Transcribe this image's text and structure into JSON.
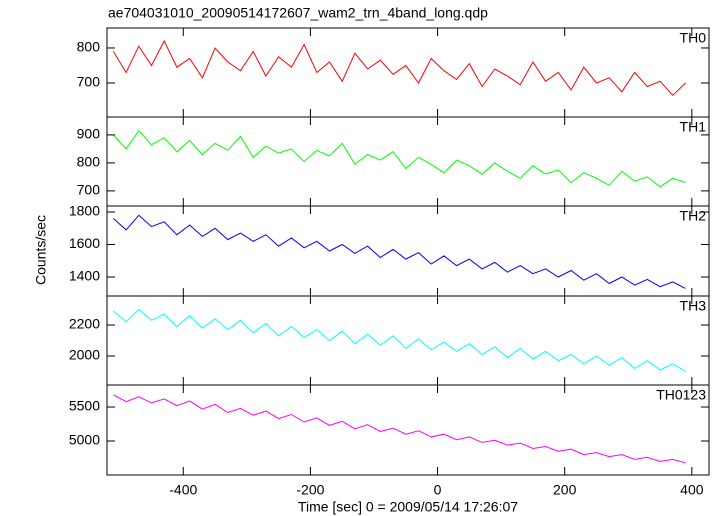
{
  "chart_data": [
    {
      "type": "line",
      "title": "ae704031010_20090514172607_wam2_trn_4band_long.qdp",
      "name": "TH0",
      "color": "#ff0000",
      "x": [
        -510,
        -490,
        -470,
        -450,
        -430,
        -410,
        -390,
        -370,
        -350,
        -330,
        -310,
        -290,
        -270,
        -250,
        -230,
        -210,
        -190,
        -170,
        -150,
        -130,
        -110,
        -90,
        -70,
        -50,
        -30,
        -10,
        10,
        30,
        50,
        70,
        90,
        110,
        130,
        150,
        170,
        190,
        210,
        230,
        250,
        270,
        290,
        310,
        330,
        350,
        370,
        390
      ],
      "values": [
        790,
        730,
        805,
        750,
        820,
        745,
        770,
        715,
        800,
        760,
        735,
        790,
        720,
        775,
        745,
        810,
        730,
        760,
        705,
        785,
        740,
        765,
        725,
        750,
        700,
        770,
        735,
        710,
        755,
        690,
        740,
        720,
        695,
        760,
        705,
        730,
        680,
        745,
        700,
        715,
        675,
        730,
        690,
        705,
        665,
        700
      ],
      "xlim": [
        -520,
        427
      ],
      "xticks": [
        -400,
        -200,
        0,
        200,
        400
      ],
      "ylim": [
        603,
        857
      ],
      "yticks": [
        700,
        800
      ]
    },
    {
      "type": "line",
      "name": "TH1",
      "color": "#00ff00",
      "x": [
        -510,
        -490,
        -470,
        -450,
        -430,
        -410,
        -390,
        -370,
        -350,
        -330,
        -310,
        -290,
        -270,
        -250,
        -230,
        -210,
        -190,
        -170,
        -150,
        -130,
        -110,
        -90,
        -70,
        -50,
        -30,
        -10,
        10,
        30,
        50,
        70,
        90,
        110,
        130,
        150,
        170,
        190,
        210,
        230,
        250,
        270,
        290,
        310,
        330,
        350,
        370,
        390
      ],
      "values": [
        900,
        850,
        915,
        865,
        890,
        840,
        880,
        830,
        870,
        845,
        895,
        820,
        860,
        835,
        850,
        805,
        845,
        825,
        870,
        795,
        830,
        810,
        840,
        780,
        820,
        795,
        765,
        810,
        790,
        760,
        800,
        770,
        745,
        790,
        760,
        775,
        730,
        765,
        745,
        720,
        770,
        735,
        750,
        715,
        745,
        730
      ],
      "xlim": [
        -520,
        427
      ],
      "xticks": [
        -400,
        -200,
        0,
        200,
        400
      ],
      "ylim": [
        646,
        964
      ],
      "yticks": [
        700,
        800,
        900
      ]
    },
    {
      "type": "line",
      "name": "TH2",
      "color": "#0000ff",
      "y_label": "Counts/sec",
      "x": [
        -510,
        -490,
        -470,
        -450,
        -430,
        -410,
        -390,
        -370,
        -350,
        -330,
        -310,
        -290,
        -270,
        -250,
        -230,
        -210,
        -190,
        -170,
        -150,
        -130,
        -110,
        -90,
        -70,
        -50,
        -30,
        -10,
        10,
        30,
        50,
        70,
        90,
        110,
        130,
        150,
        170,
        190,
        210,
        230,
        250,
        270,
        290,
        310,
        330,
        350,
        370,
        390
      ],
      "values": [
        1760,
        1690,
        1780,
        1710,
        1740,
        1660,
        1720,
        1650,
        1700,
        1630,
        1670,
        1620,
        1660,
        1590,
        1640,
        1580,
        1620,
        1560,
        1600,
        1545,
        1590,
        1520,
        1570,
        1510,
        1550,
        1480,
        1530,
        1470,
        1510,
        1450,
        1490,
        1430,
        1470,
        1420,
        1450,
        1400,
        1440,
        1380,
        1420,
        1360,
        1400,
        1350,
        1385,
        1340,
        1370,
        1330
      ],
      "xlim": [
        -520,
        427
      ],
      "xticks": [
        -400,
        -200,
        0,
        200,
        400
      ],
      "ylim": [
        1283,
        1837
      ],
      "yticks": [
        1400,
        1600,
        1800
      ]
    },
    {
      "type": "line",
      "name": "TH3",
      "color": "#00ffff",
      "x": [
        -510,
        -490,
        -470,
        -450,
        -430,
        -410,
        -390,
        -370,
        -350,
        -330,
        -310,
        -290,
        -270,
        -250,
        -230,
        -210,
        -190,
        -170,
        -150,
        -130,
        -110,
        -90,
        -70,
        -50,
        -30,
        -10,
        10,
        30,
        50,
        70,
        90,
        110,
        130,
        150,
        170,
        190,
        210,
        230,
        250,
        270,
        290,
        310,
        330,
        350,
        370,
        390
      ],
      "values": [
        2290,
        2220,
        2300,
        2230,
        2270,
        2190,
        2260,
        2180,
        2240,
        2170,
        2230,
        2150,
        2210,
        2130,
        2190,
        2120,
        2170,
        2100,
        2160,
        2080,
        2140,
        2070,
        2130,
        2050,
        2110,
        2040,
        2090,
        2030,
        2080,
        2010,
        2060,
        1990,
        2050,
        1980,
        2030,
        1970,
        2010,
        1950,
        2000,
        1940,
        1990,
        1920,
        1970,
        1910,
        1950,
        1900
      ],
      "xlim": [
        -520,
        427
      ],
      "xticks": [
        -400,
        -200,
        0,
        200,
        400
      ],
      "ylim": [
        1813,
        2387
      ],
      "yticks": [
        2000,
        2200
      ]
    },
    {
      "type": "line",
      "name": "TH0123",
      "color": "#ff00ff",
      "x_label": "Time [sec] 0 = 2009/05/14 17:26:07",
      "x": [
        -510,
        -490,
        -470,
        -450,
        -430,
        -410,
        -390,
        -370,
        -350,
        -330,
        -310,
        -290,
        -270,
        -250,
        -230,
        -210,
        -190,
        -170,
        -150,
        -130,
        -110,
        -90,
        -70,
        -50,
        -30,
        -10,
        10,
        30,
        50,
        70,
        90,
        110,
        130,
        150,
        170,
        190,
        210,
        230,
        250,
        270,
        290,
        310,
        330,
        350,
        370,
        390
      ],
      "values": [
        5680,
        5580,
        5650,
        5560,
        5620,
        5520,
        5590,
        5470,
        5540,
        5420,
        5480,
        5380,
        5440,
        5330,
        5390,
        5280,
        5340,
        5230,
        5290,
        5180,
        5240,
        5140,
        5190,
        5100,
        5150,
        5060,
        5100,
        5020,
        5060,
        4980,
        5010,
        4940,
        4970,
        4890,
        4920,
        4850,
        4880,
        4800,
        4830,
        4770,
        4800,
        4730,
        4760,
        4700,
        4730,
        4680
      ],
      "xlim": [
        -520,
        427
      ],
      "xticks": [
        -400,
        -200,
        0,
        200,
        400
      ],
      "ylim": [
        4500,
        5824
      ],
      "yticks": [
        5000,
        5500
      ]
    }
  ]
}
